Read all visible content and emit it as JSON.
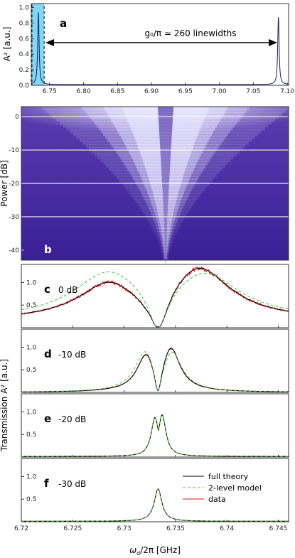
{
  "chart_data": [
    {
      "panel": "a",
      "type": "line",
      "ylabel": "A² [a.u.]",
      "x_ticks": [
        "6.75",
        "6.80",
        "6.85",
        "6.90",
        "6.95",
        "7.00",
        "7.05",
        "7.10"
      ],
      "y_ticks": [
        "0.0",
        "0.2",
        "0.4",
        "0.6",
        "0.8",
        "1.0"
      ],
      "xlim": [
        6.723,
        7.102
      ],
      "ylim": [
        0,
        1.05
      ],
      "annotation": "g₀/π ≃ 260 linewidths",
      "peaks": [
        {
          "x": 6.7335,
          "height": 0.93
        },
        {
          "x": 7.087,
          "height": 0.88
        }
      ],
      "highlight_range": [
        6.724,
        6.742
      ]
    },
    {
      "panel": "b",
      "type": "heatmap",
      "ylabel": "Power [dB]",
      "y_ticks": [
        "0",
        "-10",
        "-20",
        "-30",
        "-40"
      ],
      "ylim": [
        -43,
        3
      ],
      "white_lines_db": [
        0,
        -10,
        -20,
        -30
      ]
    },
    {
      "type": "line",
      "xlabel": "ωd/2π [GHz]",
      "ylabel": "Transmission A² [a.u.]",
      "x_ticks": [
        "6.72",
        "6.725",
        "6.73",
        "6.735",
        "6.74",
        "6.745"
      ],
      "xlim": [
        6.72,
        6.746
      ],
      "ylim": [
        0,
        1.4
      ],
      "y_ticks": [
        "0.5",
        "1.0"
      ],
      "legend": [
        "full theory",
        "2-level model",
        "data"
      ],
      "legend_position": "inside panel f, top-right",
      "colors": {
        "full_theory": "#000000",
        "two_level": "#33cc33",
        "data": "#e01010"
      },
      "panels": [
        {
          "label": "c",
          "power": "0 dB"
        },
        {
          "label": "d",
          "power": "-10 dB"
        },
        {
          "label": "e",
          "power": "-20 dB"
        },
        {
          "label": "f",
          "power": "-30 dB"
        }
      ]
    }
  ]
}
